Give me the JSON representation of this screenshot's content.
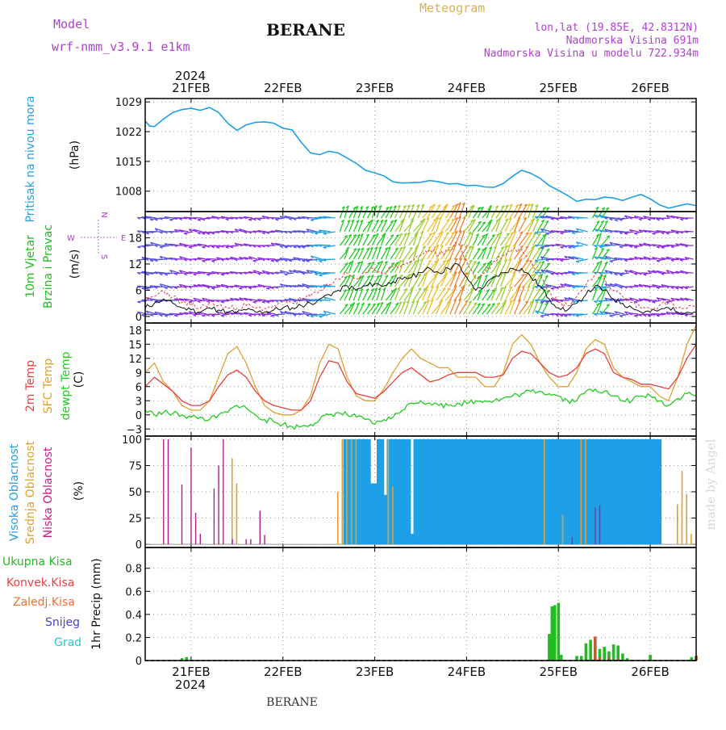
{
  "header": {
    "model_label": "Model",
    "model_name": "wrf-nmm_v3.9.1 e1km",
    "station": "BERANE",
    "meteogram_label": "Meteogram",
    "coords": "lon,lat (19.85E, 42.8312N)",
    "elevation": "Nadmorska Visina 691m",
    "model_elevation": "Nadmorska Visina u modelu 722.934m",
    "year": "2024",
    "footer_station": "BERANE",
    "watermark": "made by Angel"
  },
  "colors": {
    "pressure": "#1ea0e6",
    "wind_label": "#22bb22",
    "temp2m": "#e8403c",
    "sfc": "#e0a030",
    "dewpt": "#22cc22",
    "high_cloud": "#1ea0e6",
    "mid_cloud": "#e0a030",
    "low_cloud": "#b0208a",
    "precip_total": "#22bb22",
    "precip_conv": "#e84040",
    "precip_frz": "#f07030",
    "snow": "#4444dd",
    "hail": "#22cccc",
    "wind_dir_label": "#b040d0"
  },
  "chart_data": [
    {
      "type": "line",
      "panel": "pressure",
      "labels": [
        "Pritisak na nivou mora",
        "(hPa)"
      ],
      "x_unit": "day_of_feb",
      "ylim": [
        1003.2,
        1029.8
      ],
      "yticks": [
        1008,
        1015,
        1022,
        1029
      ],
      "x": [
        20.5,
        20.55,
        20.6,
        20.7,
        20.8,
        20.9,
        21.0,
        21.1,
        21.2,
        21.3,
        21.4,
        21.5,
        21.6,
        21.7,
        21.8,
        21.9,
        22.0,
        22.1,
        22.2,
        22.3,
        22.4,
        22.5,
        22.6,
        22.7,
        22.8,
        22.9,
        23.0,
        23.1,
        23.2,
        23.3,
        23.4,
        23.5,
        23.6,
        23.7,
        23.8,
        23.9,
        24.0,
        24.1,
        24.2,
        24.3,
        24.4,
        24.5,
        24.6,
        24.7,
        24.8,
        24.9,
        25.0,
        25.1,
        25.2,
        25.3,
        25.4,
        25.5,
        25.6,
        25.7,
        25.8,
        25.9,
        26.0,
        26.1,
        26.2,
        26.3,
        26.4,
        26.5
      ],
      "series": [
        {
          "values": [
            1024.5,
            1023.3,
            1023.2,
            1025.0,
            1026.5,
            1027.2,
            1027.5,
            1027.0,
            1027.7,
            1026.5,
            1024.0,
            1022.3,
            1023.6,
            1024.2,
            1024.3,
            1024.0,
            1022.8,
            1022.4,
            1019.5,
            1017.0,
            1016.6,
            1017.4,
            1017.0,
            1015.8,
            1014.5,
            1012.9,
            1012.3,
            1011.6,
            1010.2,
            1009.9,
            1010.0,
            1010.1,
            1010.5,
            1010.2,
            1009.7,
            1009.8,
            1009.3,
            1009.4,
            1009.0,
            1008.9,
            1009.8,
            1011.5,
            1012.9,
            1012.2,
            1011.0,
            1009.3,
            1008.2,
            1007.0,
            1005.6,
            1006.1,
            1006.0,
            1006.6,
            1006.4,
            1005.8,
            1006.6,
            1007.2,
            1006.2,
            1004.8,
            1004.0,
            1004.5,
            1005.0,
            1004.6
          ]
        }
      ]
    },
    {
      "type": "line",
      "panel": "wind",
      "labels": [
        "10m Vjetar",
        "Brzina i Pravac",
        "(m/s)"
      ],
      "direction_legend": [
        "N",
        "W",
        "E",
        "S"
      ],
      "x_unit": "day_of_feb",
      "ylim": [
        -1.5,
        24
      ],
      "yticks": [
        0,
        6,
        12,
        18
      ],
      "x": [
        20.5,
        20.6,
        20.7,
        20.8,
        20.9,
        21.0,
        21.1,
        21.2,
        21.3,
        21.4,
        21.5,
        21.6,
        21.7,
        21.8,
        21.9,
        22.0,
        22.1,
        22.2,
        22.3,
        22.4,
        22.5,
        22.6,
        22.7,
        22.8,
        22.9,
        23.0,
        23.1,
        23.2,
        23.3,
        23.4,
        23.5,
        23.6,
        23.7,
        23.8,
        23.9,
        24.0,
        24.1,
        24.2,
        24.3,
        24.4,
        24.5,
        24.6,
        24.7,
        24.8,
        24.9,
        25.0,
        25.1,
        25.2,
        25.3,
        25.4,
        25.5,
        25.6,
        25.7,
        25.8,
        25.9,
        26.0,
        26.1,
        26.2,
        26.3,
        26.4,
        26.5
      ],
      "series": [
        {
          "values": [
            2,
            3,
            4,
            3,
            2,
            1.5,
            1,
            2,
            1.5,
            1,
            1,
            1.5,
            1,
            1,
            1.5,
            2,
            2,
            2.5,
            3,
            4,
            5,
            6,
            7,
            6,
            7,
            7.5,
            7,
            8,
            8.5,
            9,
            10,
            11,
            10,
            11,
            12,
            9,
            6,
            7,
            9,
            10,
            11,
            11,
            9,
            7,
            4,
            2,
            1.5,
            3,
            5,
            7,
            6,
            4,
            3,
            2,
            1,
            1,
            1.5,
            2,
            1,
            1,
            1
          ]
        }
      ]
    },
    {
      "type": "line",
      "panel": "temperature",
      "labels": [
        "2m Temp",
        "SFC Temp",
        "dewpt Temp",
        "(C)"
      ],
      "x_unit": "day_of_feb",
      "ylim": [
        -4.5,
        19.5
      ],
      "yticks": [
        -3,
        0,
        3,
        6,
        9,
        12,
        15,
        18
      ],
      "x": [
        20.5,
        20.6,
        20.7,
        20.8,
        20.9,
        21.0,
        21.1,
        21.2,
        21.3,
        21.4,
        21.5,
        21.6,
        21.7,
        21.8,
        21.9,
        22.0,
        22.1,
        22.2,
        22.3,
        22.4,
        22.5,
        22.6,
        22.7,
        22.8,
        22.9,
        23.0,
        23.1,
        23.2,
        23.3,
        23.4,
        23.5,
        23.6,
        23.7,
        23.8,
        23.9,
        24.0,
        24.1,
        24.2,
        24.3,
        24.4,
        24.5,
        24.6,
        24.7,
        24.8,
        24.9,
        25.0,
        25.1,
        25.2,
        25.3,
        25.4,
        25.5,
        25.6,
        25.7,
        25.8,
        25.9,
        26.0,
        26.1,
        26.2,
        26.3,
        26.4,
        26.5
      ],
      "series": [
        {
          "name": "2m Temp",
          "values": [
            6,
            8,
            6.5,
            5,
            3,
            2,
            2,
            3,
            6,
            8.5,
            9.5,
            8,
            5,
            3,
            2,
            1.5,
            1,
            1,
            3,
            8,
            11.5,
            11,
            7,
            4.5,
            4,
            3.5,
            5,
            7,
            9,
            10,
            8.5,
            7,
            7.5,
            8.5,
            9,
            9,
            9,
            8,
            8,
            8.5,
            12,
            13.5,
            13,
            11,
            9,
            8,
            8.5,
            10,
            13,
            14,
            13,
            9,
            8,
            7.5,
            6.5,
            6.5,
            6,
            5.5,
            8,
            12,
            15
          ]
        },
        {
          "name": "SFC Temp",
          "values": [
            9,
            11,
            7,
            5,
            2,
            1,
            1,
            3,
            8,
            13,
            14.5,
            11,
            6,
            2,
            0.5,
            0,
            0,
            1,
            4,
            11,
            15,
            14,
            8,
            4,
            3,
            3,
            5.5,
            9,
            12,
            14,
            12,
            11,
            10,
            10,
            8,
            8,
            8,
            6,
            6,
            9,
            15,
            17,
            15,
            11,
            8,
            6,
            6,
            9,
            14,
            16,
            15,
            10,
            8,
            7,
            6,
            6,
            4,
            3,
            8,
            15,
            19
          ]
        },
        {
          "name": "dewpt Temp",
          "values": [
            1,
            0,
            0.5,
            0.3,
            0,
            -0.5,
            -0.5,
            -1,
            0,
            0.5,
            2,
            1.5,
            0,
            -1,
            -1.5,
            -2,
            -2.5,
            -2.5,
            -2,
            -1,
            0,
            0.5,
            0,
            -0.5,
            -1,
            -2,
            -1,
            -0.5,
            1,
            2.5,
            3,
            2.5,
            2,
            2,
            2.5,
            2.5,
            3,
            3,
            3,
            3.5,
            4,
            4.5,
            5,
            5,
            4.5,
            4,
            3,
            3,
            5,
            5.5,
            5,
            4,
            3,
            3,
            4,
            4,
            3,
            2,
            3.5,
            4.5,
            4
          ]
        }
      ]
    },
    {
      "type": "bar",
      "panel": "cloud",
      "labels": [
        "Visoka Oblacnost",
        "Srednja Oblacnost",
        "Niska Oblacnost",
        "(%)"
      ],
      "x_unit": "day_of_feb",
      "ylim": [
        -3,
        103
      ],
      "yticks": [
        0,
        25,
        50,
        75,
        100
      ],
      "series": [
        {
          "name": "Niska Oblacnost",
          "x": [
            20.7,
            20.75,
            20.9,
            21.0,
            21.05,
            21.1,
            21.25,
            21.3,
            21.35,
            21.45,
            21.6,
            21.65,
            21.75,
            21.8,
            25.15,
            25.4,
            25.45
          ],
          "values": [
            100,
            100,
            57,
            92,
            30,
            10,
            53,
            75,
            100,
            5,
            5,
            5,
            32,
            9,
            7,
            35,
            37
          ]
        },
        {
          "name": "Srednja Oblacnost",
          "x": [
            21.45,
            21.5,
            22.6,
            22.65,
            22.7,
            22.75,
            22.8,
            23.15,
            23.2,
            24.85,
            25.05,
            25.25,
            25.3,
            26.3,
            26.35,
            26.4,
            26.45
          ],
          "values": [
            82,
            58,
            50,
            100,
            100,
            100,
            100,
            100,
            55,
            100,
            28,
            100,
            100,
            38,
            70,
            48,
            10
          ]
        },
        {
          "name": "Visoka Oblacnost",
          "x_range": [
            22.68,
            26.1
          ],
          "bar_count": 95,
          "value": 100
        }
      ]
    },
    {
      "type": "bar",
      "panel": "precip",
      "labels": [
        "Ukupna Kisa",
        "Konvek.Kisa",
        "Zaledj.Kisa",
        "Snijeg",
        "Grad",
        "1hr Precip (mm)"
      ],
      "x_unit": "day_of_feb",
      "ylim": [
        0,
        0.98
      ],
      "yticks": [
        0,
        0.2,
        0.4,
        0.6,
        0.8
      ],
      "series": [
        {
          "name": "Ukupna Kisa",
          "x": [
            20.9,
            20.95,
            24.9,
            24.93,
            24.96,
            25.0,
            25.03,
            25.2,
            25.25,
            25.3,
            25.35,
            25.4,
            25.45,
            25.5,
            25.55,
            25.6,
            25.65,
            25.7,
            25.75,
            26.0,
            26.45,
            26.5
          ],
          "values": [
            0.02,
            0.03,
            0.23,
            0.47,
            0.48,
            0.5,
            0.05,
            0.04,
            0.04,
            0.15,
            0.18,
            0.2,
            0.1,
            0.12,
            0.08,
            0.14,
            0.13,
            0.06,
            0.02,
            0.05,
            0.03,
            0.04
          ]
        },
        {
          "name": "Konvek.Kisa",
          "x": [
            25.4,
            25.45,
            25.55,
            25.65,
            26.5
          ],
          "values": [
            0.21,
            0.03,
            0.03,
            0.02,
            0.04
          ]
        }
      ]
    }
  ],
  "x_axis": {
    "day_labels": [
      "21FEB",
      "22FEB",
      "23FEB",
      "24FEB",
      "25FEB",
      "26FEB"
    ],
    "xlim": [
      20.5,
      26.5
    ]
  }
}
